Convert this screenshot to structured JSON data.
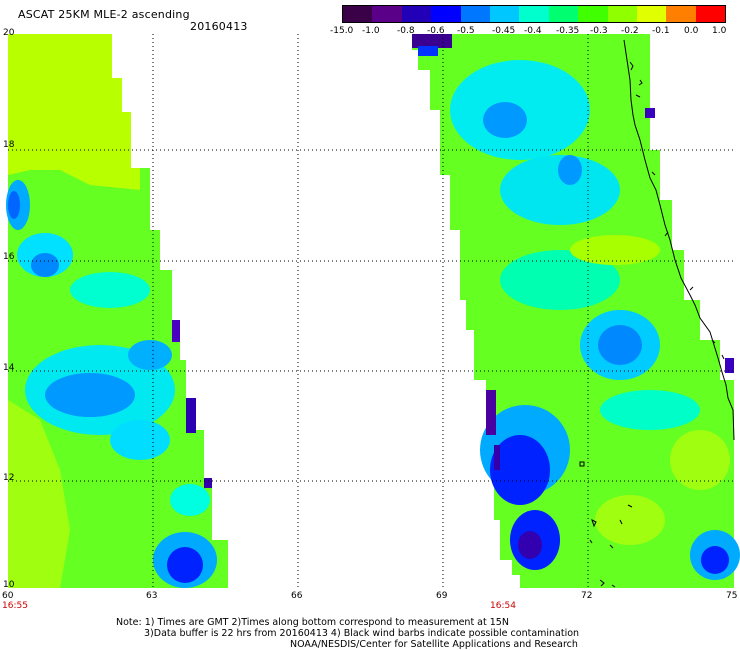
{
  "header": {
    "title": "ASCAT 25KM MLE-2 ascending",
    "date": "20160413"
  },
  "colorbar": {
    "labels": [
      "-15.0",
      "-1.0",
      "-0.8",
      "-0.6",
      "-0.5",
      "-0.45",
      "-0.4",
      "-0.35",
      "-0.3",
      "-0.2",
      "-0.1",
      "0.0",
      "1.0"
    ],
    "colors": [
      "#3a0048",
      "#5a0088",
      "#2200b8",
      "#0000ff",
      "#0077ff",
      "#00c8ff",
      "#00ffcc",
      "#00ff70",
      "#40ff00",
      "#90ff00",
      "#e0ff00",
      "#ff8000",
      "#ff0000"
    ]
  },
  "map": {
    "x_ticks": [
      "60",
      "63",
      "66",
      "69",
      "72",
      "75"
    ],
    "y_ticks": [
      "20",
      "18",
      "16",
      "14",
      "12",
      "10"
    ],
    "lon_range": [
      60,
      75
    ],
    "lat_range": [
      10,
      20
    ],
    "pass_times": [
      "16:55",
      "16:54"
    ]
  },
  "footer": {
    "line1": "Note: 1) Times are GMT 2)Times along bottom correspond to measurement at 15N",
    "line2": "3)Data buffer is 22 hrs from 20160413 4) Black wind barbs indicate possible contamination",
    "line3": "NOAA/NESDIS/Center for Satellite Applications and Research"
  }
}
